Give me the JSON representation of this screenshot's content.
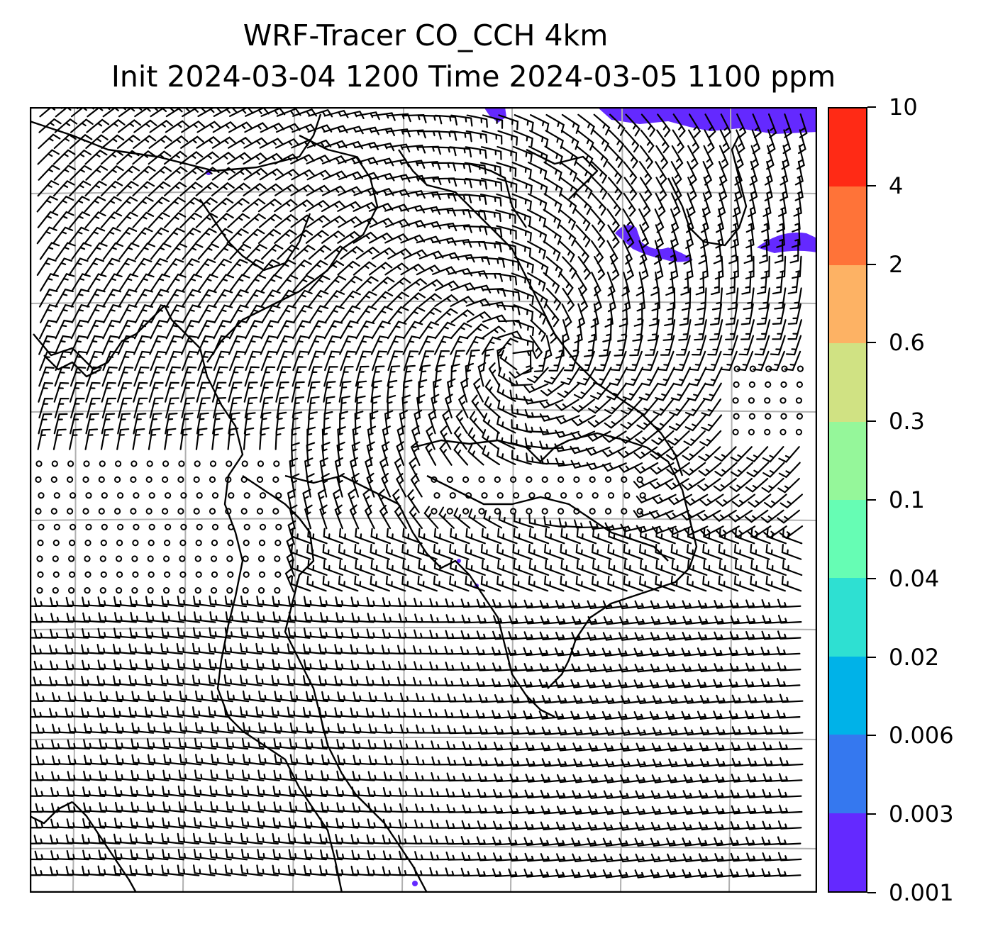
{
  "title": {
    "line1": "WRF-Tracer CO_CCH 4km",
    "line2": "Init 2024-03-04 1200 Time 2024-03-05 1100 ppm"
  },
  "colorbar": {
    "levels": [
      "0.001",
      "0.003",
      "0.006",
      "0.02",
      "0.04",
      "0.1",
      "0.3",
      "0.6",
      "2",
      "4",
      "10"
    ],
    "colors": [
      "#6429ff",
      "#3578ef",
      "#00b2e8",
      "#2ee0d2",
      "#66fdb4",
      "#95f79a",
      "#d0e283",
      "#fdb264",
      "#ff7338",
      "#ff2a15"
    ]
  },
  "map": {
    "tracer_color": "#6429ff",
    "gridline_color": "#b0b0b0",
    "coastline_color": "#000000",
    "barb_color": "#000000"
  }
}
